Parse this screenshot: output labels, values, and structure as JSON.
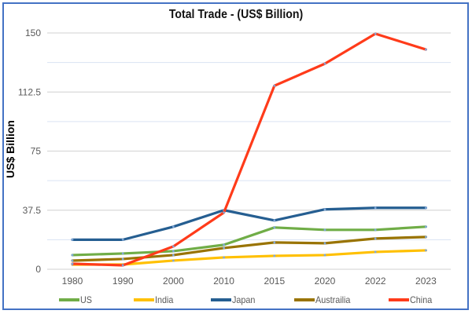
{
  "chart_data": {
    "type": "line",
    "title": "Total Trade - (US$ Billion)",
    "xlabel": "",
    "ylabel": "US$ Billion",
    "categories": [
      "1980",
      "1990",
      "2000",
      "2010",
      "2015",
      "2020",
      "2022",
      "2023"
    ],
    "ylim": [
      0,
      150
    ],
    "yticks": [
      "0",
      "37.5",
      "75",
      "112.5",
      "150"
    ],
    "ytick_values": [
      0,
      37.5,
      75,
      112.5,
      150
    ],
    "minor_gridlines": [
      18.75,
      56.25,
      93.75,
      131.25
    ],
    "grid": true,
    "legend_position": "bottom",
    "series": [
      {
        "name": "US",
        "color": "#70AD47",
        "values": [
          9,
          10,
          11.5,
          15.5,
          26.5,
          25,
          25,
          27
        ]
      },
      {
        "name": "India",
        "color": "#FFC000",
        "values": [
          3,
          3,
          5.5,
          7.5,
          8.5,
          9,
          11,
          12
        ]
      },
      {
        "name": "Japan",
        "color": "#255E91",
        "values": [
          18.75,
          18.75,
          27,
          37.5,
          31,
          38,
          39,
          39
        ]
      },
      {
        "name": "Austrailia",
        "color": "#997300",
        "values": [
          5.5,
          6.5,
          9,
          13.5,
          17,
          16.5,
          19.5,
          20.5
        ]
      },
      {
        "name": "China",
        "color": "#FF3B1A",
        "values": [
          3.5,
          2.5,
          14.5,
          36,
          116.5,
          130.5,
          149.5,
          139.5
        ]
      }
    ]
  },
  "colors": {
    "frame_border": "#4472C4",
    "major_grid": "#D9D9D9",
    "minor_grid": "#DAE3F3",
    "marker": "#7FA7D9"
  }
}
